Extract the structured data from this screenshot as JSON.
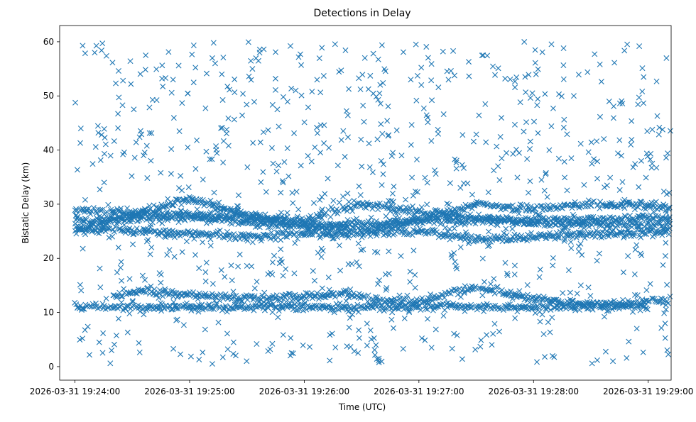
{
  "chart_data": {
    "type": "scatter",
    "title": "Detections in Delay",
    "xlabel": "Time (UTC)",
    "ylabel": "Bistatic Delay (km)",
    "marker": "x",
    "marker_color": "#1f77b4",
    "x_type": "datetime",
    "xlim": [
      "2026-03-31 19:23:52",
      "2026-03-31 19:29:12"
    ],
    "ylim": [
      -2.5,
      63
    ],
    "x_ticks": [
      "2026-03-31 19:24:00",
      "2026-03-31 19:25:00",
      "2026-03-31 19:26:00",
      "2026-03-31 19:27:00",
      "2026-03-31 19:28:00",
      "2026-03-31 19:29:00"
    ],
    "y_ticks": [
      0,
      10,
      20,
      30,
      40,
      50,
      60
    ],
    "grid": false,
    "legend": "none",
    "data_start": "2026-03-31 19:24:00",
    "data_end": "2026-03-31 19:29:13",
    "tracks": [
      {
        "t": [
          "2026-03-31 19:24:00",
          "2026-03-31 19:25:00",
          "2026-03-31 19:26:00",
          "2026-03-31 19:27:00",
          "2026-03-31 19:28:00",
          "2026-03-31 19:29:00"
        ],
        "delay": [
          11.0,
          11.0,
          11.0,
          11.0,
          11.0,
          11.0
        ]
      },
      {
        "t": [
          "2026-03-31 19:24:20",
          "2026-03-31 19:24:35",
          "2026-03-31 19:25:00",
          "2026-03-31 19:25:30",
          "2026-03-31 19:26:00",
          "2026-03-31 19:26:20",
          "2026-03-31 19:26:40",
          "2026-03-31 19:27:00",
          "2026-03-31 19:27:30",
          "2026-03-31 19:28:00",
          "2026-03-31 19:28:30",
          "2026-03-31 19:29:13"
        ],
        "delay": [
          13.0,
          14.0,
          13.3,
          12.5,
          12.8,
          13.6,
          12.0,
          12.0,
          14.8,
          12.5,
          11.5,
          12.3
        ]
      },
      {
        "t": [
          "2026-03-31 19:24:00",
          "2026-03-31 19:24:30",
          "2026-03-31 19:25:00",
          "2026-03-31 19:25:30",
          "2026-03-31 19:26:00",
          "2026-03-31 19:26:30",
          "2026-03-31 19:27:00",
          "2026-03-31 19:27:30",
          "2026-03-31 19:28:00",
          "2026-03-31 19:28:30",
          "2026-03-31 19:29:13"
        ],
        "delay": [
          25.0,
          28.0,
          31.0,
          28.0,
          26.0,
          25.0,
          27.0,
          30.0,
          29.0,
          30.0,
          29.5
        ]
      },
      {
        "t": [
          "2026-03-31 19:24:00",
          "2026-03-31 19:25:00",
          "2026-03-31 19:26:00",
          "2026-03-31 19:27:00",
          "2026-03-31 19:28:00",
          "2026-03-31 19:29:13"
        ],
        "delay": [
          27.0,
          27.5,
          26.0,
          27.0,
          27.0,
          27.5
        ]
      },
      {
        "t": [
          "2026-03-31 19:24:00",
          "2026-03-31 19:25:00",
          "2026-03-31 19:25:30",
          "2026-03-31 19:26:00",
          "2026-03-31 19:27:00",
          "2026-03-31 19:27:30",
          "2026-03-31 19:28:00",
          "2026-03-31 19:29:13"
        ],
        "delay": [
          25.5,
          24.5,
          24.0,
          24.5,
          25.0,
          23.5,
          24.0,
          25.0
        ]
      },
      {
        "t": [
          "2026-03-31 19:24:00",
          "2026-03-31 19:25:00",
          "2026-03-31 19:26:00",
          "2026-03-31 19:26:30",
          "2026-03-31 19:27:00",
          "2026-03-31 19:28:00",
          "2026-03-31 19:29:13"
        ],
        "delay": [
          29.0,
          28.0,
          27.0,
          30.0,
          28.5,
          26.5,
          26.0
        ]
      }
    ],
    "background_detections": {
      "delay_range": [
        0.5,
        60
      ],
      "time_range": [
        "2026-03-31 19:24:00",
        "2026-03-31 19:29:13"
      ],
      "approx_count": 900
    }
  }
}
